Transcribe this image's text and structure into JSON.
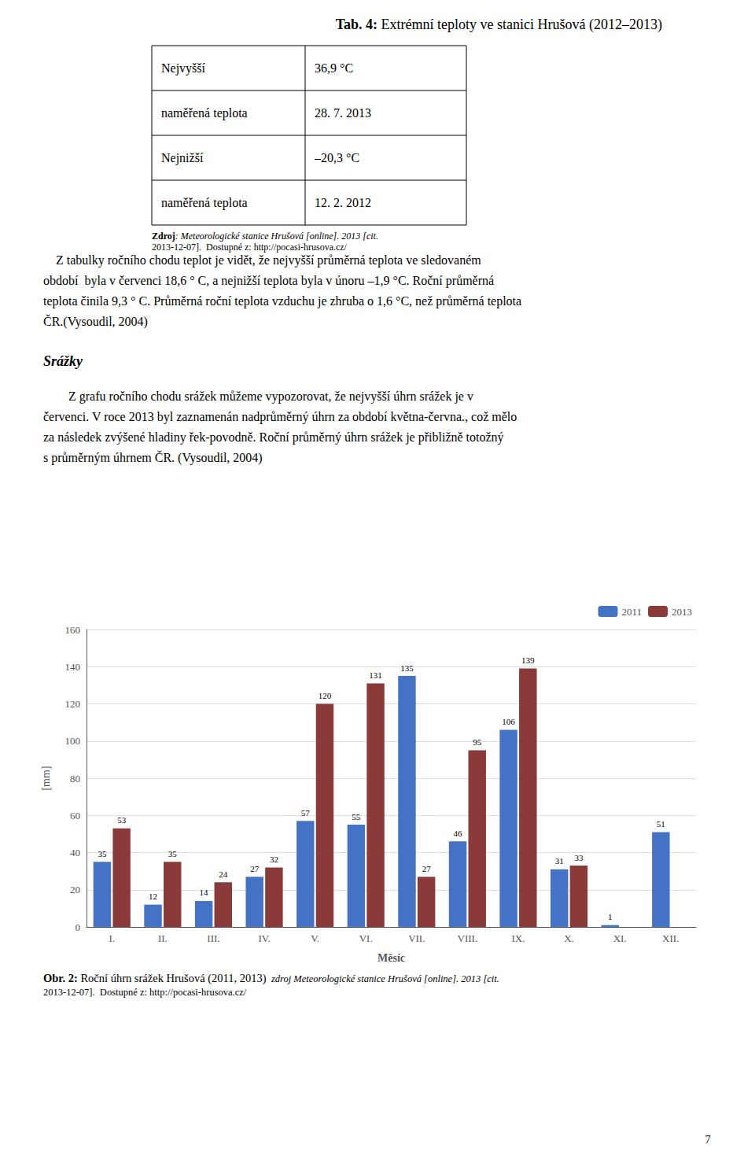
{
  "page": {
    "title": {
      "bold": "Tab. 4:",
      "text": " Extrémní teploty ve stanici Hrušová (2012–2013)"
    },
    "table": [
      [
        "Nejvyšší",
        "36,9 °C"
      ],
      [
        "naměřená teplota",
        "28. 7. 2013"
      ],
      [
        "Nejnižší",
        "–20,3 °C"
      ],
      [
        "naměřená teplota",
        "12. 2. 2012"
      ]
    ],
    "source": {
      "bold": "Zdroj",
      "italic": ": Meteorologické stanice Hrušová [online]. 2013 [cit.",
      "line2": "2013-12-07].  Dostupné z: http://pocasi-hrusova.cz/"
    },
    "body": [
      "    Z tabulky ročního chodu teplot je vidět, že nejvyšší průměrná teplota ve sledovaném",
      "období  byla v červenci 18,6 ° C, a nejnižší teplota byla v únoru –1,9 °C. Roční průměrná",
      "teplota činila 9,3 ° C. Průměrná roční teplota vzduchu je zhruba o 1,6 °C, než průměrná teplota",
      "ČR.(Vysoudil, 2004)"
    ],
    "section_title": "Srážky",
    "section_body": [
      "        Z grafu ročního chodu srážek můžeme vypozorovat, že nejvyšší úhrn srážek je v",
      "červenci. V roce 2013 byl zaznamenán nadprůměrný úhrn za období května-června., což mělo",
      "za následek zvýšené hladiny řek-povodně. Roční průměrný úhrn srážek je přibližně totožný",
      "s průměrným úhrnem ČR. (Vysoudil, 2004)"
    ],
    "caption": {
      "bold": "Obr. 2:",
      "text": " Roční úhrn srážek Hrušová (2011, 2013)",
      "italic": "  zdroj Meteorologické stanice Hrušová [online]. 2013 [cit.",
      "line2": "2013-12-07].  Dostupné z: http://pocasi-hrusova.cz/"
    },
    "page_number": "7"
  },
  "chart_data": {
    "type": "bar",
    "categories": [
      "I.",
      "II.",
      "III.",
      "IV.",
      "V.",
      "VI.",
      "VII.",
      "VIII.",
      "IX.",
      "X.",
      "XI.",
      "XII."
    ],
    "series": [
      {
        "name": "2011",
        "color": "#4472C4",
        "values": [
          35,
          12,
          14,
          27,
          57,
          55,
          135,
          46,
          106,
          31,
          1,
          51
        ]
      },
      {
        "name": "2013",
        "color": "#8B3A3A",
        "values": [
          53,
          35,
          24,
          32,
          120,
          131,
          27,
          95,
          139,
          33,
          0,
          0
        ],
        "value_labels": [
          "53",
          "35",
          "24",
          "32",
          "120",
          "131",
          "27",
          "95",
          "139",
          "33",
          null,
          null
        ]
      }
    ],
    "xlabel": "Měsíc",
    "ylabel": "[mm]",
    "ylim": [
      0,
      160
    ],
    "yticks": [
      0,
      20,
      40,
      60,
      80,
      100,
      120,
      140,
      160
    ],
    "grid": true,
    "legend": "upper right",
    "data_labels": true
  }
}
